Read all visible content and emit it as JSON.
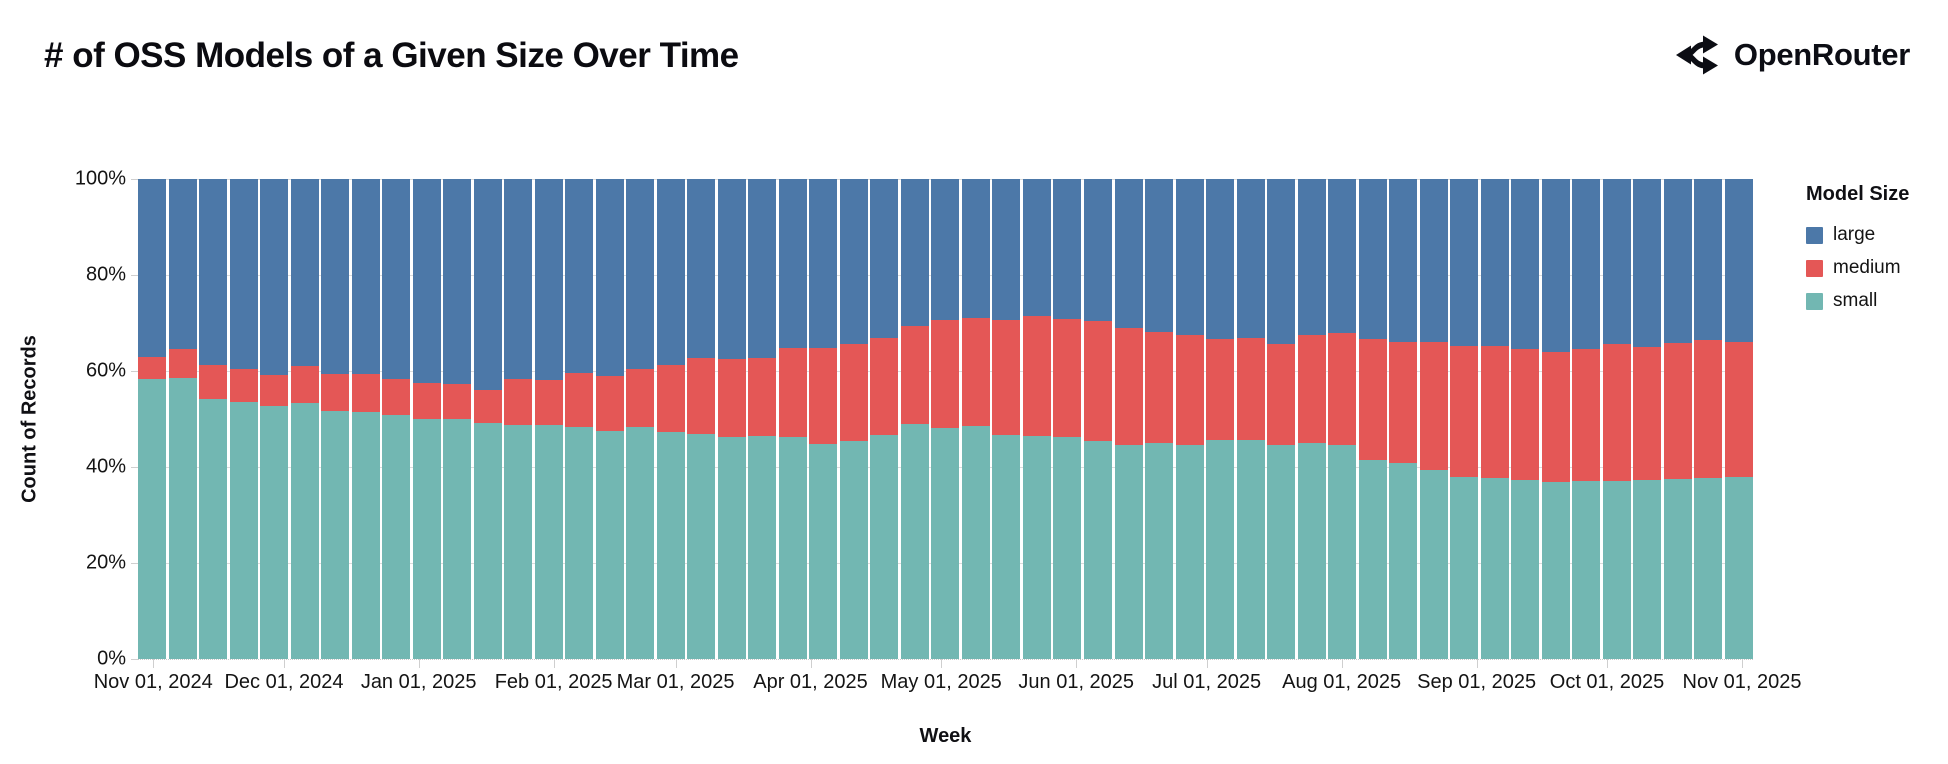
{
  "header": {
    "title": "# of OSS Models of a Given Size Over Time",
    "brand": "OpenRouter"
  },
  "chart_data": {
    "type": "bar",
    "stacked": true,
    "normalized_percent": true,
    "title": "# of OSS Models of a Given Size Over Time",
    "xlabel": "Week",
    "ylabel": "Count of Records",
    "ylim": [
      0,
      100
    ],
    "grid": true,
    "yticks": [
      "0%",
      "20%",
      "40%",
      "60%",
      "80%",
      "100%"
    ],
    "x_ticks": [
      {
        "label": "Nov 01, 2024",
        "week": 0
      },
      {
        "label": "Dec 01, 2024",
        "week": 4.29
      },
      {
        "label": "Jan 01, 2025",
        "week": 8.71
      },
      {
        "label": "Feb 01, 2025",
        "week": 13.14
      },
      {
        "label": "Mar 01, 2025",
        "week": 17.14
      },
      {
        "label": "Apr 01, 2025",
        "week": 21.57
      },
      {
        "label": "May 01, 2025",
        "week": 25.86
      },
      {
        "label": "Jun 01, 2025",
        "week": 30.29
      },
      {
        "label": "Jul 01, 2025",
        "week": 34.57
      },
      {
        "label": "Aug 01, 2025",
        "week": 39.0
      },
      {
        "label": "Sep 01, 2025",
        "week": 43.43
      },
      {
        "label": "Oct 01, 2025",
        "week": 47.71
      },
      {
        "label": "Nov 01, 2025",
        "week": 52.14
      }
    ],
    "legend": {
      "title": "Model Size",
      "position": "right",
      "entries": [
        {
          "label": "large",
          "color": "#4c78a8"
        },
        {
          "label": "medium",
          "color": "#e45756"
        },
        {
          "label": "small",
          "color": "#72b7b2"
        }
      ]
    },
    "weeks": [
      {
        "date": "Nov 01, 2024",
        "small": 58.4,
        "medium": 4.5,
        "large": 37.1
      },
      {
        "date": "Nov 08, 2024",
        "small": 58.6,
        "medium": 6.0,
        "large": 35.4
      },
      {
        "date": "Nov 15, 2024",
        "small": 54.1,
        "medium": 7.1,
        "large": 38.8
      },
      {
        "date": "Nov 22, 2024",
        "small": 53.6,
        "medium": 6.9,
        "large": 39.5
      },
      {
        "date": "Nov 29, 2024",
        "small": 52.8,
        "medium": 6.3,
        "large": 40.9
      },
      {
        "date": "Dec 06, 2024",
        "small": 53.3,
        "medium": 7.8,
        "large": 38.9
      },
      {
        "date": "Dec 13, 2024",
        "small": 51.7,
        "medium": 7.6,
        "large": 40.7
      },
      {
        "date": "Dec 20, 2024",
        "small": 51.5,
        "medium": 7.8,
        "large": 40.7
      },
      {
        "date": "Dec 27, 2024",
        "small": 50.8,
        "medium": 7.6,
        "large": 41.6
      },
      {
        "date": "Jan 03, 2025",
        "small": 50.0,
        "medium": 7.4,
        "large": 42.6
      },
      {
        "date": "Jan 10, 2025",
        "small": 50.0,
        "medium": 7.3,
        "large": 42.7
      },
      {
        "date": "Jan 17, 2025",
        "small": 49.1,
        "medium": 6.9,
        "large": 44.0
      },
      {
        "date": "Jan 24, 2025",
        "small": 48.8,
        "medium": 9.6,
        "large": 41.6
      },
      {
        "date": "Jan 31, 2025",
        "small": 48.8,
        "medium": 9.4,
        "large": 41.8
      },
      {
        "date": "Feb 07, 2025",
        "small": 48.3,
        "medium": 11.2,
        "large": 40.5
      },
      {
        "date": "Feb 14, 2025",
        "small": 47.6,
        "medium": 11.4,
        "large": 41.0
      },
      {
        "date": "Feb 21, 2025",
        "small": 48.4,
        "medium": 12.0,
        "large": 39.6
      },
      {
        "date": "Feb 28, 2025",
        "small": 47.2,
        "medium": 14.0,
        "large": 38.8
      },
      {
        "date": "Mar 07, 2025",
        "small": 46.9,
        "medium": 15.9,
        "large": 37.2
      },
      {
        "date": "Mar 14, 2025",
        "small": 46.3,
        "medium": 16.1,
        "large": 37.6
      },
      {
        "date": "Mar 21, 2025",
        "small": 46.5,
        "medium": 16.2,
        "large": 37.3
      },
      {
        "date": "Mar 28, 2025",
        "small": 46.3,
        "medium": 18.4,
        "large": 35.3
      },
      {
        "date": "Apr 04, 2025",
        "small": 44.8,
        "medium": 19.9,
        "large": 35.3
      },
      {
        "date": "Apr 11, 2025",
        "small": 45.5,
        "medium": 20.1,
        "large": 34.4
      },
      {
        "date": "Apr 18, 2025",
        "small": 46.7,
        "medium": 20.1,
        "large": 33.2
      },
      {
        "date": "Apr 25, 2025",
        "small": 49.0,
        "medium": 20.4,
        "large": 30.6
      },
      {
        "date": "May 02, 2025",
        "small": 48.1,
        "medium": 22.5,
        "large": 29.4
      },
      {
        "date": "May 09, 2025",
        "small": 48.5,
        "medium": 22.6,
        "large": 28.9
      },
      {
        "date": "May 16, 2025",
        "small": 46.7,
        "medium": 24.0,
        "large": 29.3
      },
      {
        "date": "May 23, 2025",
        "small": 46.5,
        "medium": 24.9,
        "large": 28.6
      },
      {
        "date": "May 30, 2025",
        "small": 46.2,
        "medium": 24.7,
        "large": 29.1
      },
      {
        "date": "Jun 06, 2025",
        "small": 45.5,
        "medium": 25.0,
        "large": 29.5
      },
      {
        "date": "Jun 13, 2025",
        "small": 44.6,
        "medium": 24.4,
        "large": 31.0
      },
      {
        "date": "Jun 20, 2025",
        "small": 45.0,
        "medium": 23.1,
        "large": 31.9
      },
      {
        "date": "Jun 27, 2025",
        "small": 44.5,
        "medium": 22.9,
        "large": 32.6
      },
      {
        "date": "Jul 04, 2025",
        "small": 45.7,
        "medium": 21.0,
        "large": 33.3
      },
      {
        "date": "Jul 11, 2025",
        "small": 45.6,
        "medium": 21.2,
        "large": 33.2
      },
      {
        "date": "Jul 18, 2025",
        "small": 44.6,
        "medium": 21.1,
        "large": 34.3
      },
      {
        "date": "Jul 25, 2025",
        "small": 45.0,
        "medium": 22.5,
        "large": 32.5
      },
      {
        "date": "Aug 01, 2025",
        "small": 44.6,
        "medium": 23.4,
        "large": 32.0
      },
      {
        "date": "Aug 08, 2025",
        "small": 41.5,
        "medium": 25.2,
        "large": 33.3
      },
      {
        "date": "Aug 15, 2025",
        "small": 40.8,
        "medium": 25.2,
        "large": 34.0
      },
      {
        "date": "Aug 22, 2025",
        "small": 39.4,
        "medium": 26.6,
        "large": 34.0
      },
      {
        "date": "Aug 29, 2025",
        "small": 38.0,
        "medium": 27.2,
        "large": 34.8
      },
      {
        "date": "Sep 05, 2025",
        "small": 37.7,
        "medium": 27.6,
        "large": 34.7
      },
      {
        "date": "Sep 12, 2025",
        "small": 37.2,
        "medium": 27.3,
        "large": 35.5
      },
      {
        "date": "Sep 19, 2025",
        "small": 36.9,
        "medium": 27.1,
        "large": 36.0
      },
      {
        "date": "Sep 26, 2025",
        "small": 37.0,
        "medium": 27.5,
        "large": 35.5
      },
      {
        "date": "Oct 03, 2025",
        "small": 37.1,
        "medium": 28.5,
        "large": 34.4
      },
      {
        "date": "Oct 10, 2025",
        "small": 37.3,
        "medium": 27.7,
        "large": 35.0
      },
      {
        "date": "Oct 17, 2025",
        "small": 37.6,
        "medium": 28.2,
        "large": 34.2
      },
      {
        "date": "Oct 24, 2025",
        "small": 37.7,
        "medium": 28.7,
        "large": 33.6
      },
      {
        "date": "Oct 31, 2025",
        "small": 38.0,
        "medium": 28.1,
        "large": 33.9
      }
    ]
  }
}
